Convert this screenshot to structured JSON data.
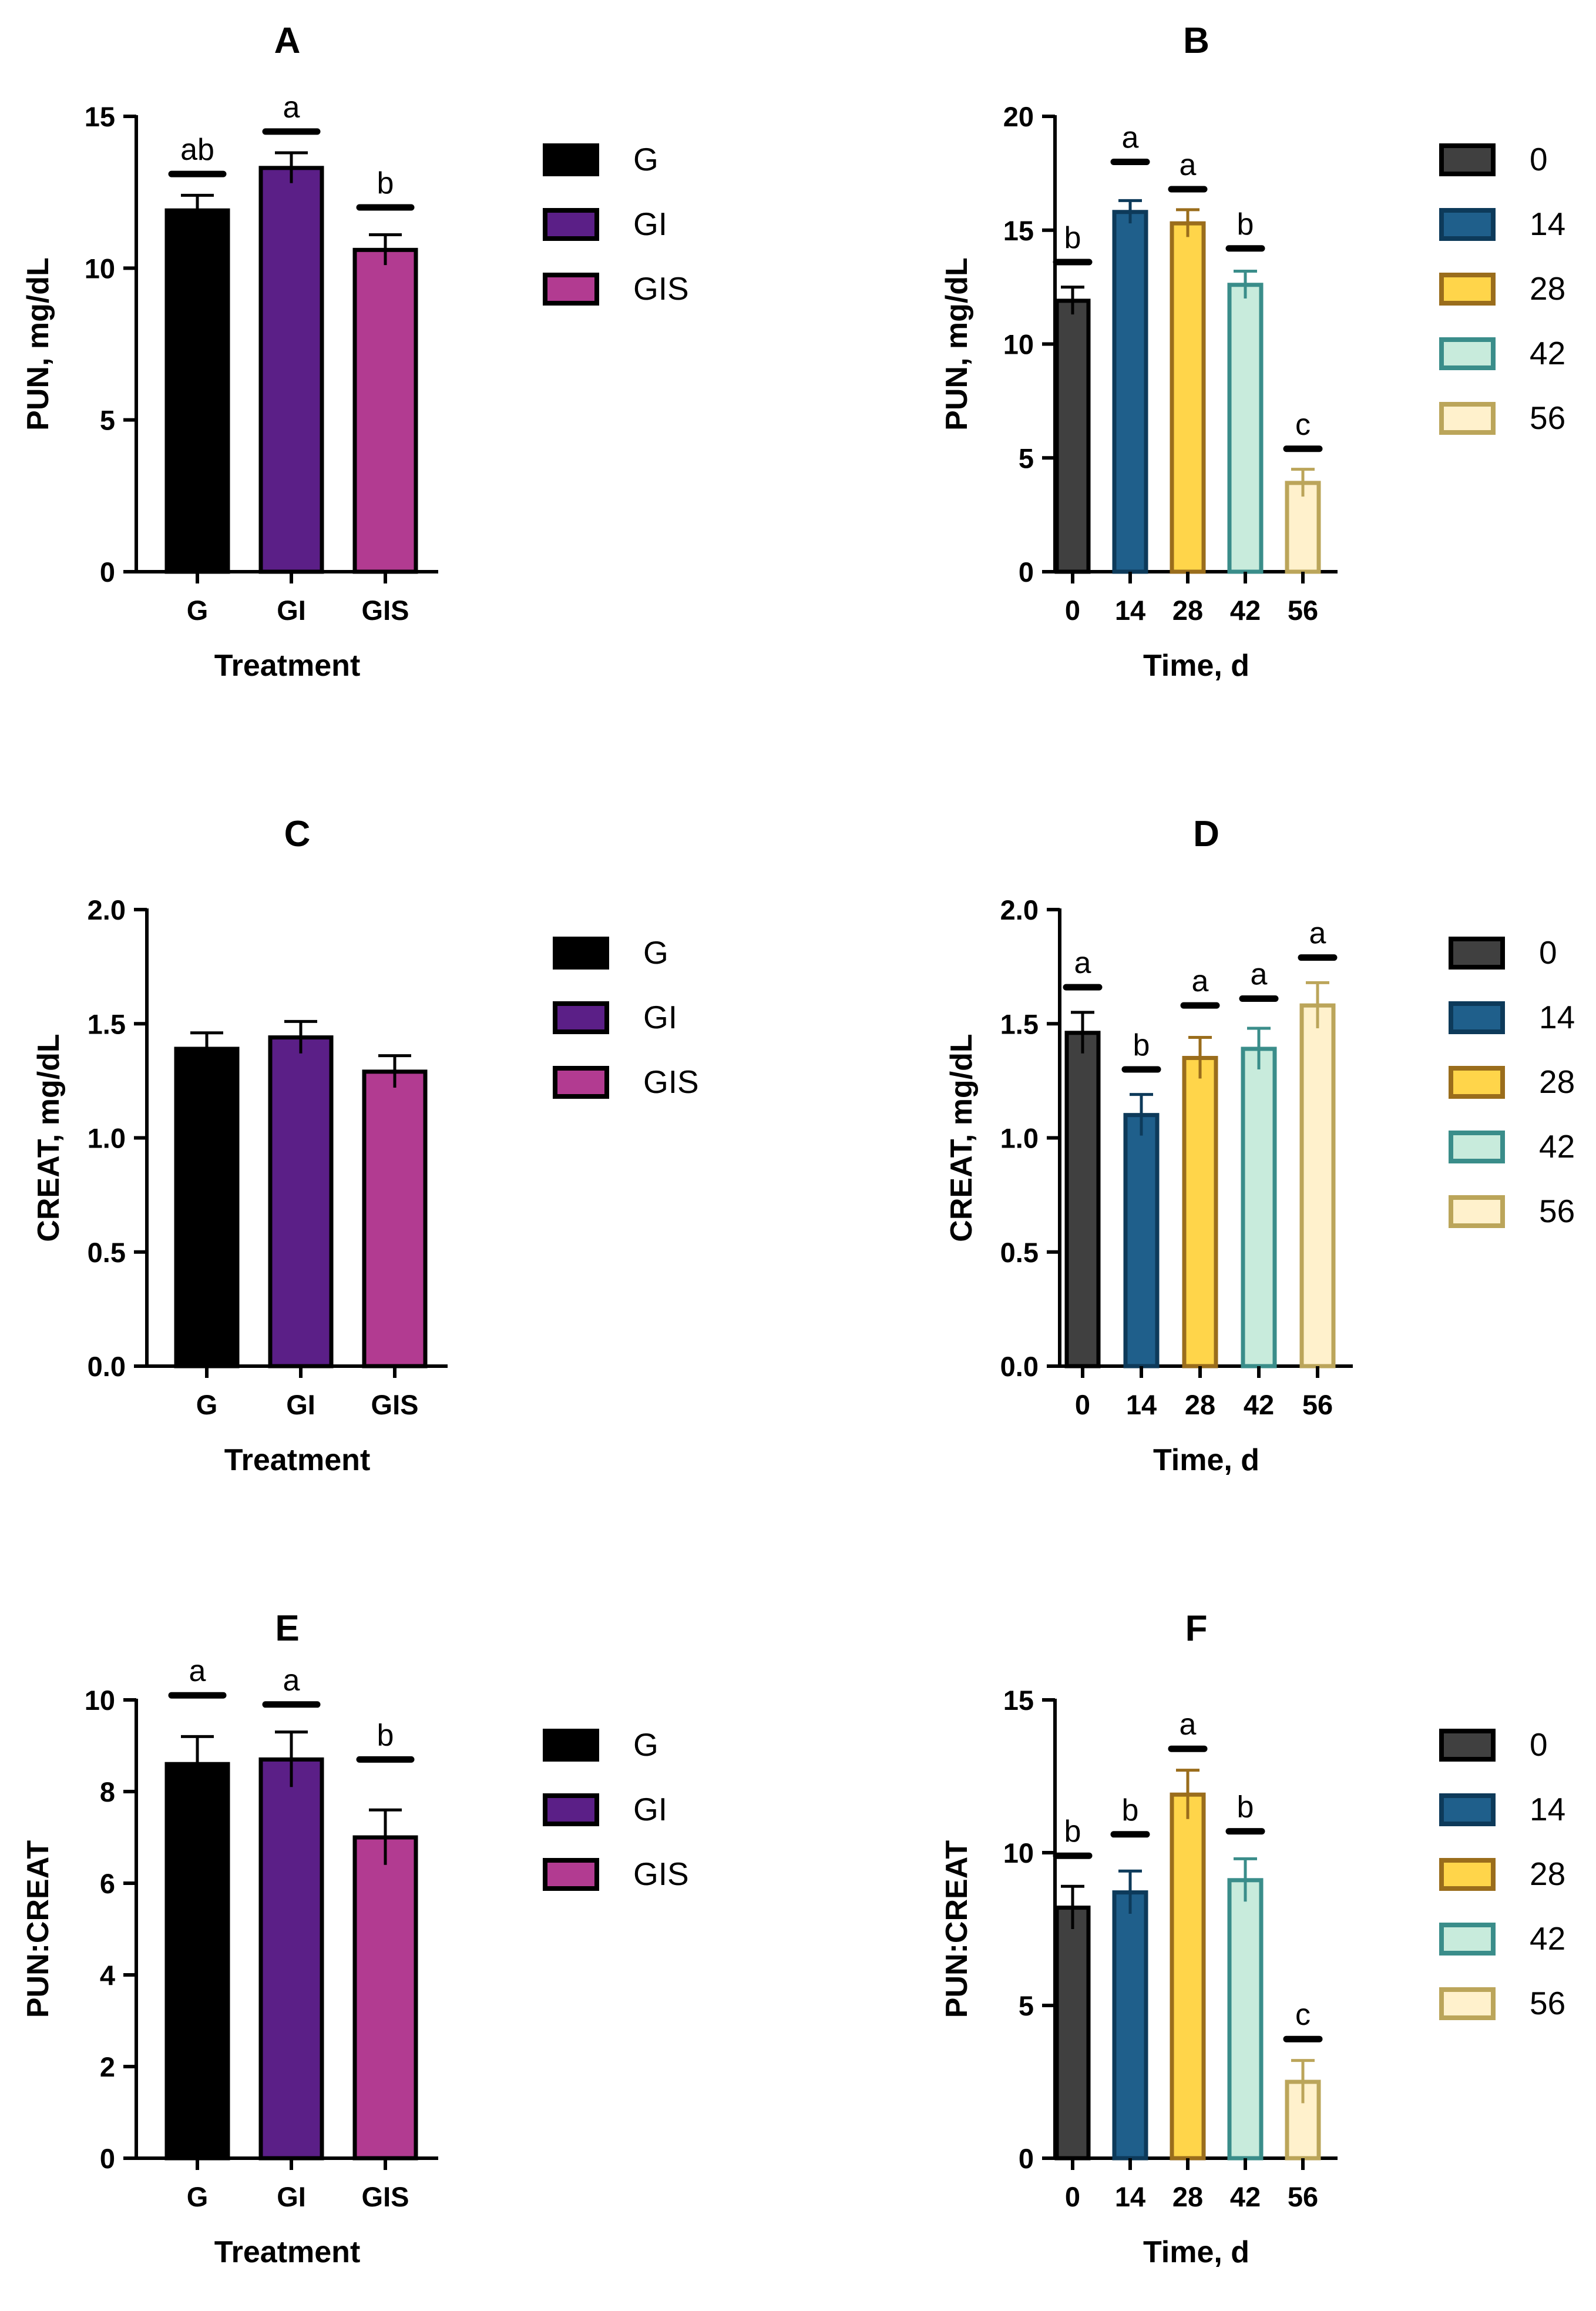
{
  "chart_data": [
    {
      "panel": "A",
      "title": "A",
      "type": "bar",
      "xlabel": "Treatment",
      "ylabel": "PUN, mg/dL",
      "ylim": [
        0,
        15
      ],
      "yticks": [
        "0",
        "5",
        "10",
        "15"
      ],
      "categories": [
        "G",
        "GI",
        "GIS"
      ],
      "values": [
        11.9,
        13.3,
        10.6
      ],
      "errors": [
        0.5,
        0.5,
        0.5
      ],
      "letters": [
        "ab",
        "a",
        "b"
      ],
      "letter_lines": [
        13.1,
        14.5,
        12.0
      ],
      "colors": [
        "#000000",
        "#5b1f87",
        "#b23b91"
      ],
      "edge_colors": [
        "#000000",
        "#000000",
        "#000000"
      ],
      "legend": [
        "G",
        "GI",
        "GIS"
      ]
    },
    {
      "panel": "B",
      "title": "B",
      "type": "bar",
      "xlabel": "Time, d",
      "ylabel": "PUN, mg/dL",
      "ylim": [
        0,
        20
      ],
      "yticks": [
        "0",
        "5",
        "10",
        "15",
        "20"
      ],
      "categories": [
        "0",
        "14",
        "28",
        "42",
        "56"
      ],
      "values": [
        11.9,
        15.8,
        15.3,
        12.6,
        3.9
      ],
      "errors": [
        0.6,
        0.5,
        0.6,
        0.6,
        0.6
      ],
      "letters": [
        "b",
        "a",
        "a",
        "b",
        "c"
      ],
      "letter_lines": [
        13.6,
        18.0,
        16.8,
        14.2,
        5.4
      ],
      "colors": [
        "#404040",
        "#1f5f8b",
        "#ffd54a",
        "#c8ebdc",
        "#fff1cc"
      ],
      "edge_colors": [
        "#000000",
        "#0d3a5a",
        "#9a6d1c",
        "#3a8d8a",
        "#bba55a"
      ],
      "legend": [
        "0",
        "14",
        "28",
        "42",
        "56"
      ]
    },
    {
      "panel": "C",
      "title": "C",
      "type": "bar",
      "xlabel": "Treatment",
      "ylabel": "CREAT, mg/dL",
      "ylim": [
        0,
        2
      ],
      "yticks": [
        "0.0",
        "0.5",
        "1.0",
        "1.5",
        "2.0"
      ],
      "categories": [
        "G",
        "GI",
        "GIS"
      ],
      "values": [
        1.39,
        1.44,
        1.29
      ],
      "errors": [
        0.07,
        0.07,
        0.07
      ],
      "letters": [
        "",
        "",
        ""
      ],
      "letter_lines": [
        null,
        null,
        null
      ],
      "colors": [
        "#000000",
        "#5b1f87",
        "#b23b91"
      ],
      "edge_colors": [
        "#000000",
        "#000000",
        "#000000"
      ],
      "legend": [
        "G",
        "GI",
        "GIS"
      ]
    },
    {
      "panel": "D",
      "title": "D",
      "type": "bar",
      "xlabel": "Time, d",
      "ylabel": "CREAT, mg/dL",
      "ylim": [
        0,
        2
      ],
      "yticks": [
        "0.0",
        "0.5",
        "1.0",
        "1.5",
        "2.0"
      ],
      "categories": [
        "0",
        "14",
        "28",
        "42",
        "56"
      ],
      "values": [
        1.46,
        1.1,
        1.35,
        1.39,
        1.58
      ],
      "errors": [
        0.09,
        0.09,
        0.09,
        0.09,
        0.1
      ],
      "letters": [
        "a",
        "b",
        "a",
        "a",
        "a"
      ],
      "letter_lines": [
        1.66,
        1.3,
        1.58,
        1.61,
        1.79
      ],
      "colors": [
        "#404040",
        "#1f5f8b",
        "#ffd54a",
        "#c8ebdc",
        "#fff1cc"
      ],
      "edge_colors": [
        "#000000",
        "#0d3a5a",
        "#9a6d1c",
        "#3a8d8a",
        "#bba55a"
      ],
      "legend": [
        "0",
        "14",
        "28",
        "42",
        "56"
      ]
    },
    {
      "panel": "E",
      "title": "E",
      "type": "bar",
      "xlabel": "Treatment",
      "ylabel": "PUN:CREAT",
      "ylim": [
        0,
        10
      ],
      "yticks": [
        "0",
        "2",
        "4",
        "6",
        "8",
        "10"
      ],
      "categories": [
        "G",
        "GI",
        "GIS"
      ],
      "values": [
        8.6,
        8.7,
        7.0
      ],
      "errors": [
        0.6,
        0.6,
        0.6
      ],
      "letters": [
        "a",
        "a",
        "b"
      ],
      "letter_lines": [
        10.1,
        9.9,
        8.7
      ],
      "colors": [
        "#000000",
        "#5b1f87",
        "#b23b91"
      ],
      "edge_colors": [
        "#000000",
        "#000000",
        "#000000"
      ],
      "legend": [
        "G",
        "GI",
        "GIS"
      ]
    },
    {
      "panel": "F",
      "title": "F",
      "type": "bar",
      "xlabel": "Time, d",
      "ylabel": "PUN:CREAT",
      "ylim": [
        0,
        15
      ],
      "yticks": [
        "0",
        "5",
        "10",
        "15"
      ],
      "categories": [
        "0",
        "14",
        "28",
        "42",
        "56"
      ],
      "values": [
        8.2,
        8.7,
        11.9,
        9.1,
        2.5
      ],
      "errors": [
        0.7,
        0.7,
        0.8,
        0.7,
        0.7
      ],
      "letters": [
        "b",
        "b",
        "a",
        "b",
        "c"
      ],
      "letter_lines": [
        9.9,
        10.6,
        13.4,
        10.7,
        3.9
      ],
      "colors": [
        "#404040",
        "#1f5f8b",
        "#ffd54a",
        "#c8ebdc",
        "#fff1cc"
      ],
      "edge_colors": [
        "#000000",
        "#0d3a5a",
        "#9a6d1c",
        "#3a8d8a",
        "#bba55a"
      ],
      "legend": [
        "0",
        "14",
        "28",
        "42",
        "56"
      ]
    }
  ]
}
